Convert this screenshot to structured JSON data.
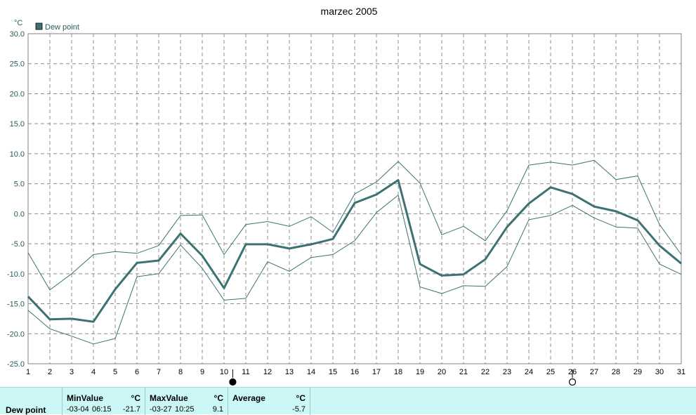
{
  "chart_data": {
    "type": "line",
    "title": "marzec 2005",
    "unit_label": "°C",
    "legend": [
      "Dew point"
    ],
    "legend_position": "top-left",
    "grid": true,
    "ylim": [
      -25,
      30
    ],
    "yticks": [
      "30.0",
      "25.0",
      "20.0",
      "15.0",
      "10.0",
      "5.0",
      "0.0",
      "-5.0",
      "-10.0",
      "-15.0",
      "-20.0",
      "-25.0"
    ],
    "x": [
      1,
      2,
      3,
      4,
      5,
      6,
      7,
      8,
      9,
      10,
      11,
      12,
      13,
      14,
      15,
      16,
      17,
      18,
      19,
      20,
      21,
      22,
      23,
      24,
      25,
      26,
      27,
      28,
      29,
      30,
      31
    ],
    "series": [
      {
        "name": "Dew point",
        "role": "average",
        "values": [
          -13.8,
          -17.6,
          -17.5,
          -18.0,
          -12.6,
          -8.2,
          -7.8,
          -3.3,
          -7.0,
          -12.4,
          -5.1,
          -5.1,
          -5.8,
          -5.1,
          -4.2,
          1.8,
          3.2,
          5.6,
          -8.4,
          -10.3,
          -10.1,
          -7.6,
          -2.2,
          1.7,
          4.4,
          3.3,
          1.2,
          0.4,
          -1.1,
          -5.3,
          -8.3
        ]
      },
      {
        "role": "max",
        "values": [
          -6.5,
          -12.7,
          -10.0,
          -6.8,
          -6.3,
          -6.6,
          -5.3,
          -0.3,
          -0.2,
          -6.8,
          -1.8,
          -1.3,
          -2.1,
          -0.5,
          -3.1,
          3.3,
          5.3,
          8.7,
          5.1,
          -3.5,
          -2.1,
          -4.5,
          0.5,
          8.1,
          8.6,
          8.1,
          8.9,
          5.7,
          6.3,
          -1.8,
          -6.8
        ]
      },
      {
        "role": "min",
        "values": [
          -16.1,
          -19.2,
          -20.4,
          -21.7,
          -20.8,
          -10.5,
          -10.0,
          -5.2,
          -9.1,
          -14.4,
          -14.1,
          -8.0,
          -9.6,
          -7.3,
          -6.8,
          -4.5,
          0.2,
          3.1,
          -12.2,
          -13.3,
          -12.0,
          -12.1,
          -8.8,
          -1.0,
          -0.3,
          1.4,
          -0.7,
          -2.2,
          -2.4,
          -8.4,
          -10.1
        ]
      }
    ],
    "markers": [
      {
        "x": 10.4,
        "style": "filled"
      },
      {
        "x": 26,
        "style": "open"
      }
    ]
  },
  "colors": {
    "line": "#3d7272",
    "grid": "#8c8c8c",
    "axis_text": "#000000",
    "footer_bg": "#ccf7f7"
  },
  "footer": {
    "row_label": "Dew point",
    "min": {
      "header": "MinValue",
      "unit": "°C",
      "date": "-03-04",
      "time": "06:15",
      "value": "-21.7"
    },
    "max": {
      "header": "MaxValue",
      "unit": "°C",
      "date": "-03-27",
      "time": "10:25",
      "value": "9.1"
    },
    "avg": {
      "header": "Average",
      "unit": "°C",
      "value": "-5.7"
    }
  }
}
